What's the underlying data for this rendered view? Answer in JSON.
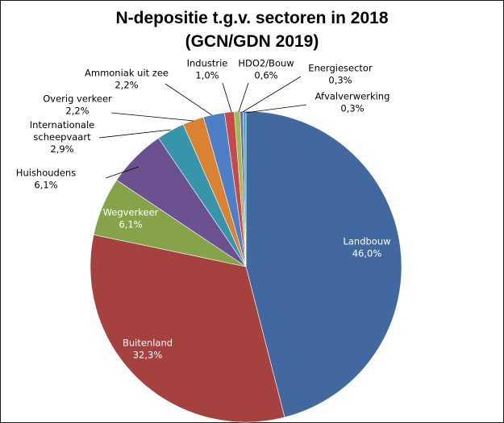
{
  "chart_data": {
    "type": "pie",
    "title": [
      "N-depositie t.g.v. sectoren in 2018",
      "(GCN/GDN 2019)"
    ],
    "slices": [
      {
        "name": "Landbouw",
        "value": 46.0,
        "label": [
          "Landbouw",
          "46,0%"
        ],
        "color": "#4169a0"
      },
      {
        "name": "Buitenland",
        "value": 32.3,
        "label": [
          "Buitenland",
          "32,3%"
        ],
        "color": "#a5413e"
      },
      {
        "name": "Wegverkeer",
        "value": 6.1,
        "label": [
          "Wegverkeer",
          "6,1%"
        ],
        "color": "#86a34a"
      },
      {
        "name": "Huishoudens",
        "value": 6.1,
        "label": [
          "Huishoudens",
          "6,1%"
        ],
        "color": "#6b5190"
      },
      {
        "name": "Internationale scheepvaart",
        "value": 2.9,
        "label": [
          "Internationale",
          "scheepvaart",
          "2,9%"
        ],
        "color": "#3795ab"
      },
      {
        "name": "Overig verkeer",
        "value": 2.2,
        "label": [
          "Overig verkeer",
          "2,2%"
        ],
        "color": "#db8132"
      },
      {
        "name": "Ammoniak uit zee",
        "value": 2.2,
        "label": [
          "Ammoniak uit zee",
          "2,2%"
        ],
        "color": "#4d7fc6"
      },
      {
        "name": "Industrie",
        "value": 1.0,
        "label": [
          "Industrie",
          "1,0%"
        ],
        "color": "#c9494a"
      },
      {
        "name": "HDO2/Bouw",
        "value": 0.6,
        "label": [
          "HDO2/Bouw",
          "0,6%"
        ],
        "color": "#9bbd56"
      },
      {
        "name": "Energiesector",
        "value": 0.3,
        "label": [
          "Energiesector",
          "0,3%"
        ],
        "color": "#7a5ca4"
      },
      {
        "name": "Afvalverwerking",
        "value": 0.3,
        "label": [
          "Afvalverwerking",
          "0,3%"
        ],
        "color": "#44abc4"
      }
    ]
  }
}
